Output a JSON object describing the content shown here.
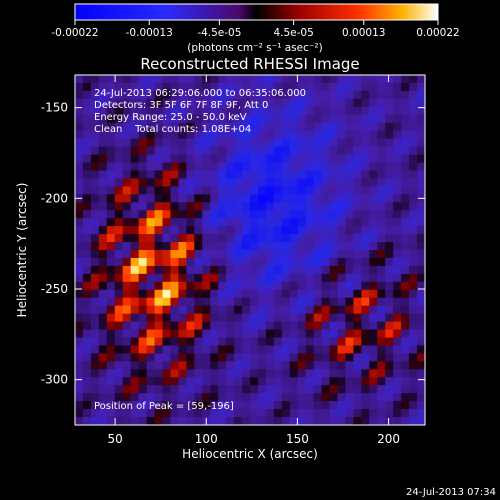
{
  "chart_data": {
    "type": "heatmap",
    "title": "Reconstructed RHESSI Image",
    "xlabel": "Heliocentric X (arcsec)",
    "ylabel": "Heliocentric Y (arcsec)",
    "xlim": [
      28,
      220
    ],
    "ylim": [
      -325,
      -132
    ],
    "xticks": [
      50,
      100,
      150,
      200
    ],
    "yticks": [
      -150,
      -200,
      -250,
      -300
    ],
    "colorbar": {
      "ticks": [
        "-0.00022",
        "-0.00013",
        "-4.5e-05",
        "4.5e-05",
        "0.00013",
        "0.00022"
      ],
      "tick_values": [
        -0.00022,
        -0.00013,
        -4.5e-05,
        4.5e-05,
        0.00013,
        0.00022
      ],
      "range": [
        -0.00022,
        0.00022
      ],
      "unit_label": "(photons cm⁻² s⁻¹ asec⁻²)"
    },
    "annotations": [
      "24-Jul-2013 06:29:06.000 to 06:35:06.000",
      "Detectors: 3F 5F 6F 7F 8F 9F, Att 0",
      "Energy Range: 25.0 - 50.0 keV",
      "Clean    Total counts: 1.08E+04"
    ],
    "peak_label": "Position of Peak = [59,-196]",
    "peak": {
      "x": 59,
      "y": -196
    },
    "grid": false
  },
  "footer_timestamp": "24-Jul-2013 07:34"
}
